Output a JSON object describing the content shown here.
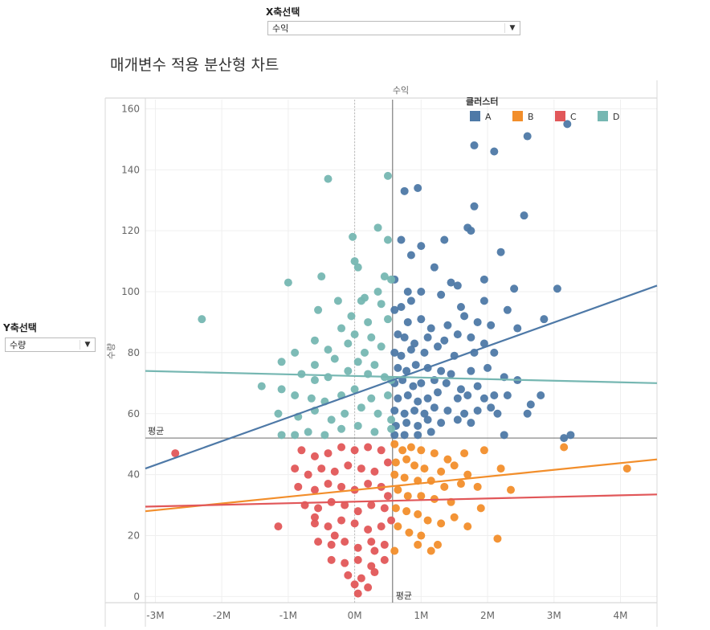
{
  "x_param": {
    "label": "X축선택",
    "value": "수익"
  },
  "y_param": {
    "label": "Y축선택",
    "value": "수량"
  },
  "title": "매개변수 적용 분산형 차트",
  "chart_data": {
    "type": "scatter",
    "xlabel": "수익",
    "ylabel": "수량",
    "xlim": [
      -3.15,
      4.55
    ],
    "ylim": [
      -2,
      163
    ],
    "x_ticks": [
      -3,
      -2,
      -1,
      0,
      1,
      2,
      3,
      4
    ],
    "x_tick_labels": [
      "-3M",
      "-2M",
      "-1M",
      "0M",
      "1M",
      "2M",
      "3M",
      "4M"
    ],
    "y_ticks": [
      0,
      20,
      40,
      60,
      80,
      100,
      120,
      140,
      160
    ],
    "y_tick_labels": [
      "0",
      "20",
      "40",
      "60",
      "80",
      "100",
      "120",
      "140",
      "160"
    ],
    "grid": true,
    "legend_title": "클러스터",
    "legend_position": "top-right",
    "reference_lines": {
      "x_mean": 0.57,
      "y_mean": 52,
      "x_label": "평균",
      "y_label": "평균",
      "dotted_x": 0.0
    },
    "series": [
      {
        "name": "A",
        "color": "#4e79a7",
        "trend": [
          [
            -3.15,
            42
          ],
          [
            4.55,
            102
          ]
        ],
        "points": [
          [
            1.8,
            148
          ],
          [
            2.1,
            146
          ],
          [
            2.6,
            151
          ],
          [
            3.2,
            155
          ],
          [
            0.75,
            133
          ],
          [
            0.95,
            134
          ],
          [
            1.8,
            128
          ],
          [
            2.55,
            125
          ],
          [
            0.7,
            117
          ],
          [
            1.0,
            115
          ],
          [
            1.35,
            117
          ],
          [
            1.7,
            121
          ],
          [
            1.75,
            120
          ],
          [
            2.2,
            113
          ],
          [
            0.85,
            112
          ],
          [
            1.2,
            108
          ],
          [
            0.6,
            104
          ],
          [
            0.8,
            100
          ],
          [
            1.0,
            100
          ],
          [
            1.45,
            103
          ],
          [
            1.55,
            102
          ],
          [
            1.95,
            104
          ],
          [
            2.4,
            101
          ],
          [
            3.05,
            101
          ],
          [
            0.7,
            95
          ],
          [
            0.85,
            97
          ],
          [
            1.3,
            99
          ],
          [
            1.6,
            95
          ],
          [
            1.95,
            97
          ],
          [
            2.3,
            94
          ],
          [
            2.85,
            91
          ],
          [
            0.6,
            94
          ],
          [
            0.8,
            90
          ],
          [
            1.0,
            91
          ],
          [
            1.15,
            88
          ],
          [
            1.4,
            89
          ],
          [
            1.65,
            92
          ],
          [
            1.85,
            90
          ],
          [
            2.05,
            89
          ],
          [
            2.45,
            88
          ],
          [
            0.65,
            86
          ],
          [
            0.75,
            85
          ],
          [
            0.9,
            83
          ],
          [
            1.1,
            85
          ],
          [
            1.35,
            84
          ],
          [
            1.55,
            86
          ],
          [
            1.75,
            85
          ],
          [
            1.95,
            83
          ],
          [
            0.6,
            80
          ],
          [
            0.7,
            79
          ],
          [
            0.85,
            81
          ],
          [
            1.05,
            80
          ],
          [
            1.25,
            82
          ],
          [
            1.5,
            79
          ],
          [
            1.8,
            80
          ],
          [
            2.1,
            80
          ],
          [
            0.65,
            75
          ],
          [
            0.78,
            74
          ],
          [
            0.92,
            76
          ],
          [
            1.1,
            75
          ],
          [
            1.3,
            74
          ],
          [
            1.45,
            73
          ],
          [
            1.75,
            74
          ],
          [
            2.0,
            75
          ],
          [
            2.25,
            72
          ],
          [
            0.6,
            70
          ],
          [
            0.72,
            71
          ],
          [
            0.88,
            69
          ],
          [
            1.0,
            70
          ],
          [
            1.2,
            71
          ],
          [
            1.38,
            70
          ],
          [
            1.6,
            68
          ],
          [
            1.85,
            69
          ],
          [
            2.45,
            71
          ],
          [
            0.65,
            65
          ],
          [
            0.8,
            66
          ],
          [
            0.95,
            64
          ],
          [
            1.1,
            65
          ],
          [
            1.25,
            67
          ],
          [
            1.55,
            65
          ],
          [
            1.7,
            66
          ],
          [
            1.95,
            65
          ],
          [
            2.1,
            66
          ],
          [
            2.3,
            66
          ],
          [
            2.8,
            66
          ],
          [
            0.6,
            61
          ],
          [
            0.75,
            60
          ],
          [
            0.9,
            61
          ],
          [
            1.05,
            60
          ],
          [
            1.2,
            62
          ],
          [
            1.4,
            61
          ],
          [
            1.65,
            60
          ],
          [
            1.85,
            61
          ],
          [
            2.05,
            62
          ],
          [
            2.65,
            63
          ],
          [
            0.62,
            56
          ],
          [
            0.78,
            57
          ],
          [
            0.95,
            56
          ],
          [
            1.1,
            58
          ],
          [
            1.3,
            57
          ],
          [
            1.55,
            58
          ],
          [
            1.75,
            57
          ],
          [
            2.15,
            60
          ],
          [
            2.6,
            60
          ],
          [
            0.6,
            53
          ],
          [
            0.75,
            53
          ],
          [
            0.95,
            53
          ],
          [
            1.15,
            54
          ],
          [
            2.25,
            53
          ],
          [
            3.15,
            52
          ],
          [
            3.25,
            53
          ]
        ]
      },
      {
        "name": "B",
        "color": "#f28e2b",
        "trend": [
          [
            -3.15,
            28
          ],
          [
            4.55,
            45
          ]
        ],
        "points": [
          [
            0.6,
            50
          ],
          [
            0.72,
            48
          ],
          [
            0.85,
            49
          ],
          [
            1.0,
            48
          ],
          [
            1.2,
            47
          ],
          [
            1.4,
            45
          ],
          [
            1.65,
            47
          ],
          [
            1.95,
            48
          ],
          [
            0.62,
            44
          ],
          [
            0.78,
            45
          ],
          [
            0.9,
            43
          ],
          [
            1.05,
            42
          ],
          [
            1.3,
            41
          ],
          [
            1.5,
            43
          ],
          [
            1.7,
            40
          ],
          [
            2.2,
            42
          ],
          [
            0.6,
            40
          ],
          [
            0.75,
            39
          ],
          [
            0.95,
            38
          ],
          [
            1.15,
            38
          ],
          [
            1.35,
            36
          ],
          [
            1.6,
            37
          ],
          [
            1.85,
            36
          ],
          [
            2.35,
            35
          ],
          [
            0.65,
            35
          ],
          [
            0.8,
            33
          ],
          [
            1.0,
            33
          ],
          [
            1.2,
            32
          ],
          [
            1.45,
            31
          ],
          [
            1.9,
            29
          ],
          [
            3.15,
            49
          ],
          [
            4.1,
            42
          ],
          [
            0.62,
            29
          ],
          [
            0.78,
            28
          ],
          [
            0.95,
            27
          ],
          [
            1.1,
            25
          ],
          [
            1.3,
            24
          ],
          [
            1.5,
            26
          ],
          [
            1.7,
            23
          ],
          [
            2.15,
            19
          ],
          [
            0.65,
            23
          ],
          [
            0.82,
            21
          ],
          [
            1.0,
            20
          ],
          [
            1.25,
            17
          ],
          [
            1.15,
            15
          ],
          [
            0.95,
            17
          ],
          [
            0.6,
            15
          ]
        ]
      },
      {
        "name": "C",
        "color": "#e15759",
        "trend": [
          [
            -3.15,
            29.5
          ],
          [
            4.55,
            33.5
          ]
        ],
        "points": [
          [
            -2.7,
            47
          ],
          [
            -1.15,
            23
          ],
          [
            -0.8,
            48
          ],
          [
            -0.6,
            46
          ],
          [
            -0.4,
            47
          ],
          [
            -0.2,
            49
          ],
          [
            0.0,
            48
          ],
          [
            0.2,
            49
          ],
          [
            0.4,
            48
          ],
          [
            -0.9,
            42
          ],
          [
            -0.7,
            40
          ],
          [
            -0.5,
            42
          ],
          [
            -0.3,
            41
          ],
          [
            -0.1,
            43
          ],
          [
            0.1,
            42
          ],
          [
            0.3,
            41
          ],
          [
            0.5,
            44
          ],
          [
            -0.85,
            36
          ],
          [
            -0.6,
            35
          ],
          [
            -0.4,
            37
          ],
          [
            -0.2,
            36
          ],
          [
            0.0,
            35
          ],
          [
            0.2,
            37
          ],
          [
            0.4,
            36
          ],
          [
            0.5,
            33
          ],
          [
            -0.75,
            30
          ],
          [
            -0.55,
            29
          ],
          [
            -0.35,
            31
          ],
          [
            -0.15,
            30
          ],
          [
            0.05,
            28
          ],
          [
            0.25,
            30
          ],
          [
            0.45,
            29
          ],
          [
            -0.6,
            24
          ],
          [
            -0.4,
            23
          ],
          [
            -0.2,
            25
          ],
          [
            0.0,
            24
          ],
          [
            0.2,
            22
          ],
          [
            0.4,
            23
          ],
          [
            0.55,
            25
          ],
          [
            -0.55,
            18
          ],
          [
            -0.35,
            17
          ],
          [
            -0.15,
            18
          ],
          [
            0.05,
            16
          ],
          [
            0.25,
            18
          ],
          [
            0.45,
            17
          ],
          [
            -0.35,
            12
          ],
          [
            -0.15,
            11
          ],
          [
            0.05,
            12
          ],
          [
            0.25,
            10
          ],
          [
            0.45,
            12
          ],
          [
            -0.1,
            7
          ],
          [
            0.1,
            6
          ],
          [
            0.3,
            8
          ],
          [
            0.0,
            4
          ],
          [
            0.2,
            3
          ],
          [
            0.05,
            1
          ],
          [
            -0.6,
            26
          ],
          [
            -0.3,
            20
          ],
          [
            0.3,
            15
          ]
        ]
      },
      {
        "name": "D",
        "color": "#76b7b2",
        "trend": [
          [
            -3.15,
            74
          ],
          [
            4.55,
            70
          ]
        ],
        "points": [
          [
            -2.3,
            91
          ],
          [
            -0.4,
            137
          ],
          [
            0.5,
            138
          ],
          [
            0.35,
            121
          ],
          [
            -0.03,
            118
          ],
          [
            0.5,
            117
          ],
          [
            0.0,
            110
          ],
          [
            0.05,
            108
          ],
          [
            -1.0,
            103
          ],
          [
            -0.5,
            105
          ],
          [
            0.45,
            105
          ],
          [
            0.55,
            104
          ],
          [
            0.15,
            98
          ],
          [
            0.35,
            100
          ],
          [
            -0.25,
            97
          ],
          [
            -0.55,
            94
          ],
          [
            0.1,
            97
          ],
          [
            0.4,
            96
          ],
          [
            -0.05,
            92
          ],
          [
            0.2,
            90
          ],
          [
            0.5,
            91
          ],
          [
            -0.2,
            88
          ],
          [
            0.0,
            86
          ],
          [
            0.25,
            85
          ],
          [
            -0.6,
            84
          ],
          [
            -0.9,
            80
          ],
          [
            -0.4,
            81
          ],
          [
            -0.1,
            83
          ],
          [
            0.15,
            80
          ],
          [
            0.4,
            82
          ],
          [
            -1.1,
            77
          ],
          [
            -0.6,
            76
          ],
          [
            -0.3,
            78
          ],
          [
            0.05,
            77
          ],
          [
            0.3,
            76
          ],
          [
            -1.4,
            69
          ],
          [
            -1.1,
            68
          ],
          [
            -0.8,
            73
          ],
          [
            -0.6,
            71
          ],
          [
            -0.4,
            72
          ],
          [
            -0.1,
            74
          ],
          [
            0.2,
            73
          ],
          [
            0.45,
            72
          ],
          [
            0.55,
            71
          ],
          [
            -0.9,
            66
          ],
          [
            -0.65,
            65
          ],
          [
            -0.45,
            64
          ],
          [
            -0.2,
            66
          ],
          [
            0.0,
            68
          ],
          [
            0.25,
            65
          ],
          [
            0.5,
            66
          ],
          [
            -1.15,
            60
          ],
          [
            -0.85,
            59
          ],
          [
            -0.6,
            61
          ],
          [
            -0.35,
            58
          ],
          [
            -0.15,
            60
          ],
          [
            0.1,
            62
          ],
          [
            0.35,
            60
          ],
          [
            0.55,
            58
          ],
          [
            -1.1,
            53
          ],
          [
            -0.9,
            53
          ],
          [
            -0.7,
            54
          ],
          [
            -0.45,
            53
          ],
          [
            -0.2,
            55
          ],
          [
            0.05,
            56
          ],
          [
            0.3,
            54
          ],
          [
            0.55,
            55
          ]
        ]
      }
    ]
  }
}
